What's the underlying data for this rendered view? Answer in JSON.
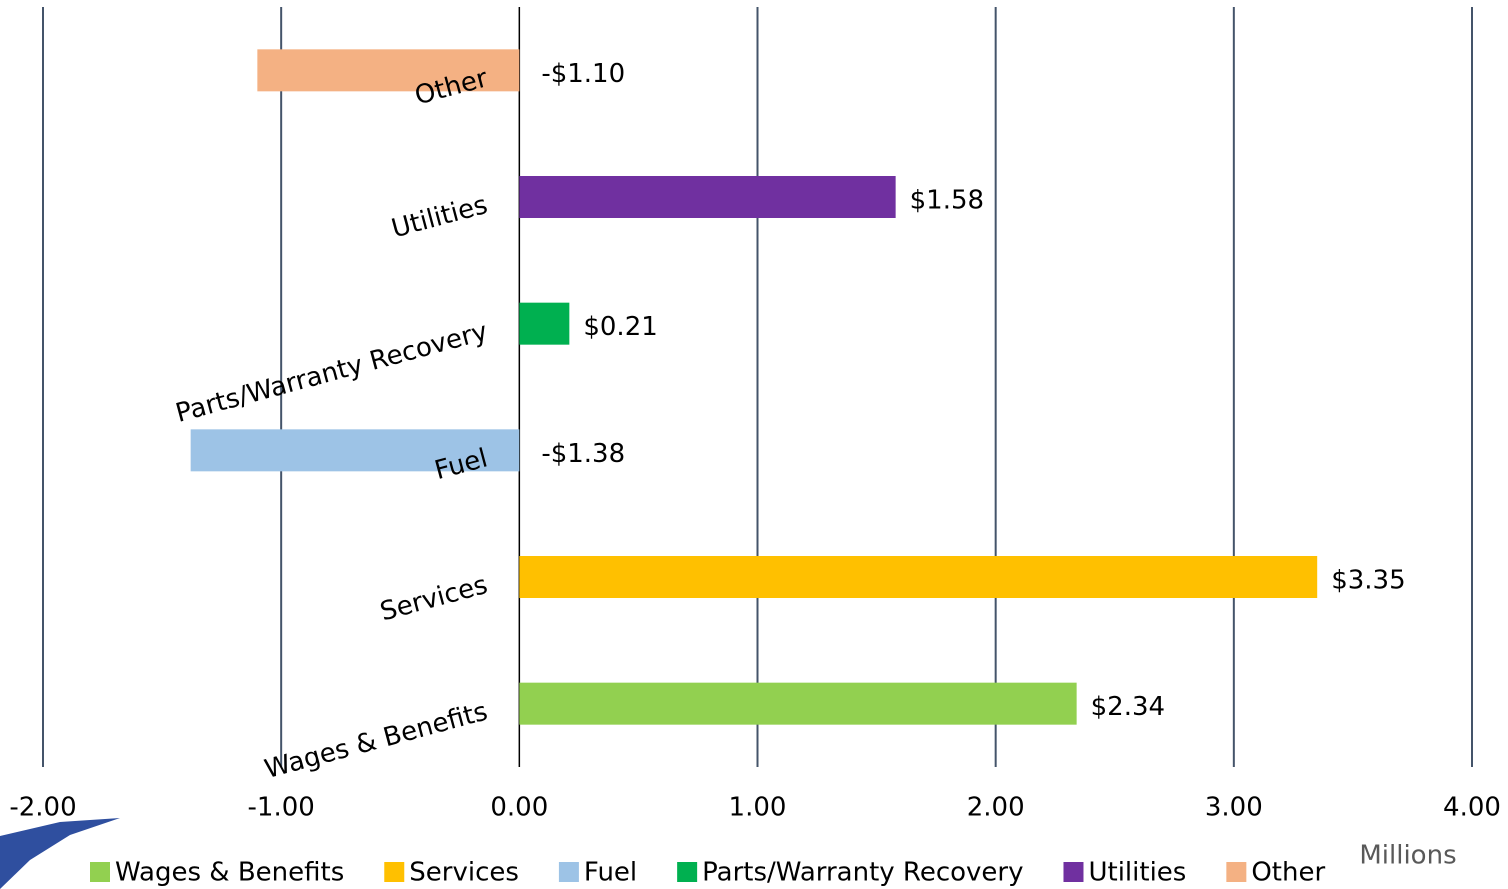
{
  "chart_data": {
    "type": "barh",
    "categories": [
      "Wages & Benefits",
      "Services",
      "Fuel",
      "Parts/Warranty Recovery",
      "Utilities",
      "Other"
    ],
    "values": [
      2.34,
      3.35,
      -1.38,
      0.21,
      1.58,
      -1.1
    ],
    "value_labels": [
      "$2.34",
      "$3.35",
      "-$1.38",
      "$0.21",
      "$1.58",
      "-$1.10"
    ],
    "colors": [
      "#92d050",
      "#ffc000",
      "#9dc3e6",
      "#00b050",
      "#7030a0",
      "#f4b183"
    ],
    "xlim": [
      -2,
      4
    ],
    "xticks": [
      {
        "value": -2,
        "label": "-2.00"
      },
      {
        "value": -1,
        "label": "-1.00"
      },
      {
        "value": 0,
        "label": "0.00"
      },
      {
        "value": 1,
        "label": "1.00"
      },
      {
        "value": 2,
        "label": "2.00"
      },
      {
        "value": 3,
        "label": "3.00"
      },
      {
        "value": 4,
        "label": "4.00"
      }
    ],
    "x_label": "Millions",
    "grid": true,
    "legend": "bottom"
  }
}
